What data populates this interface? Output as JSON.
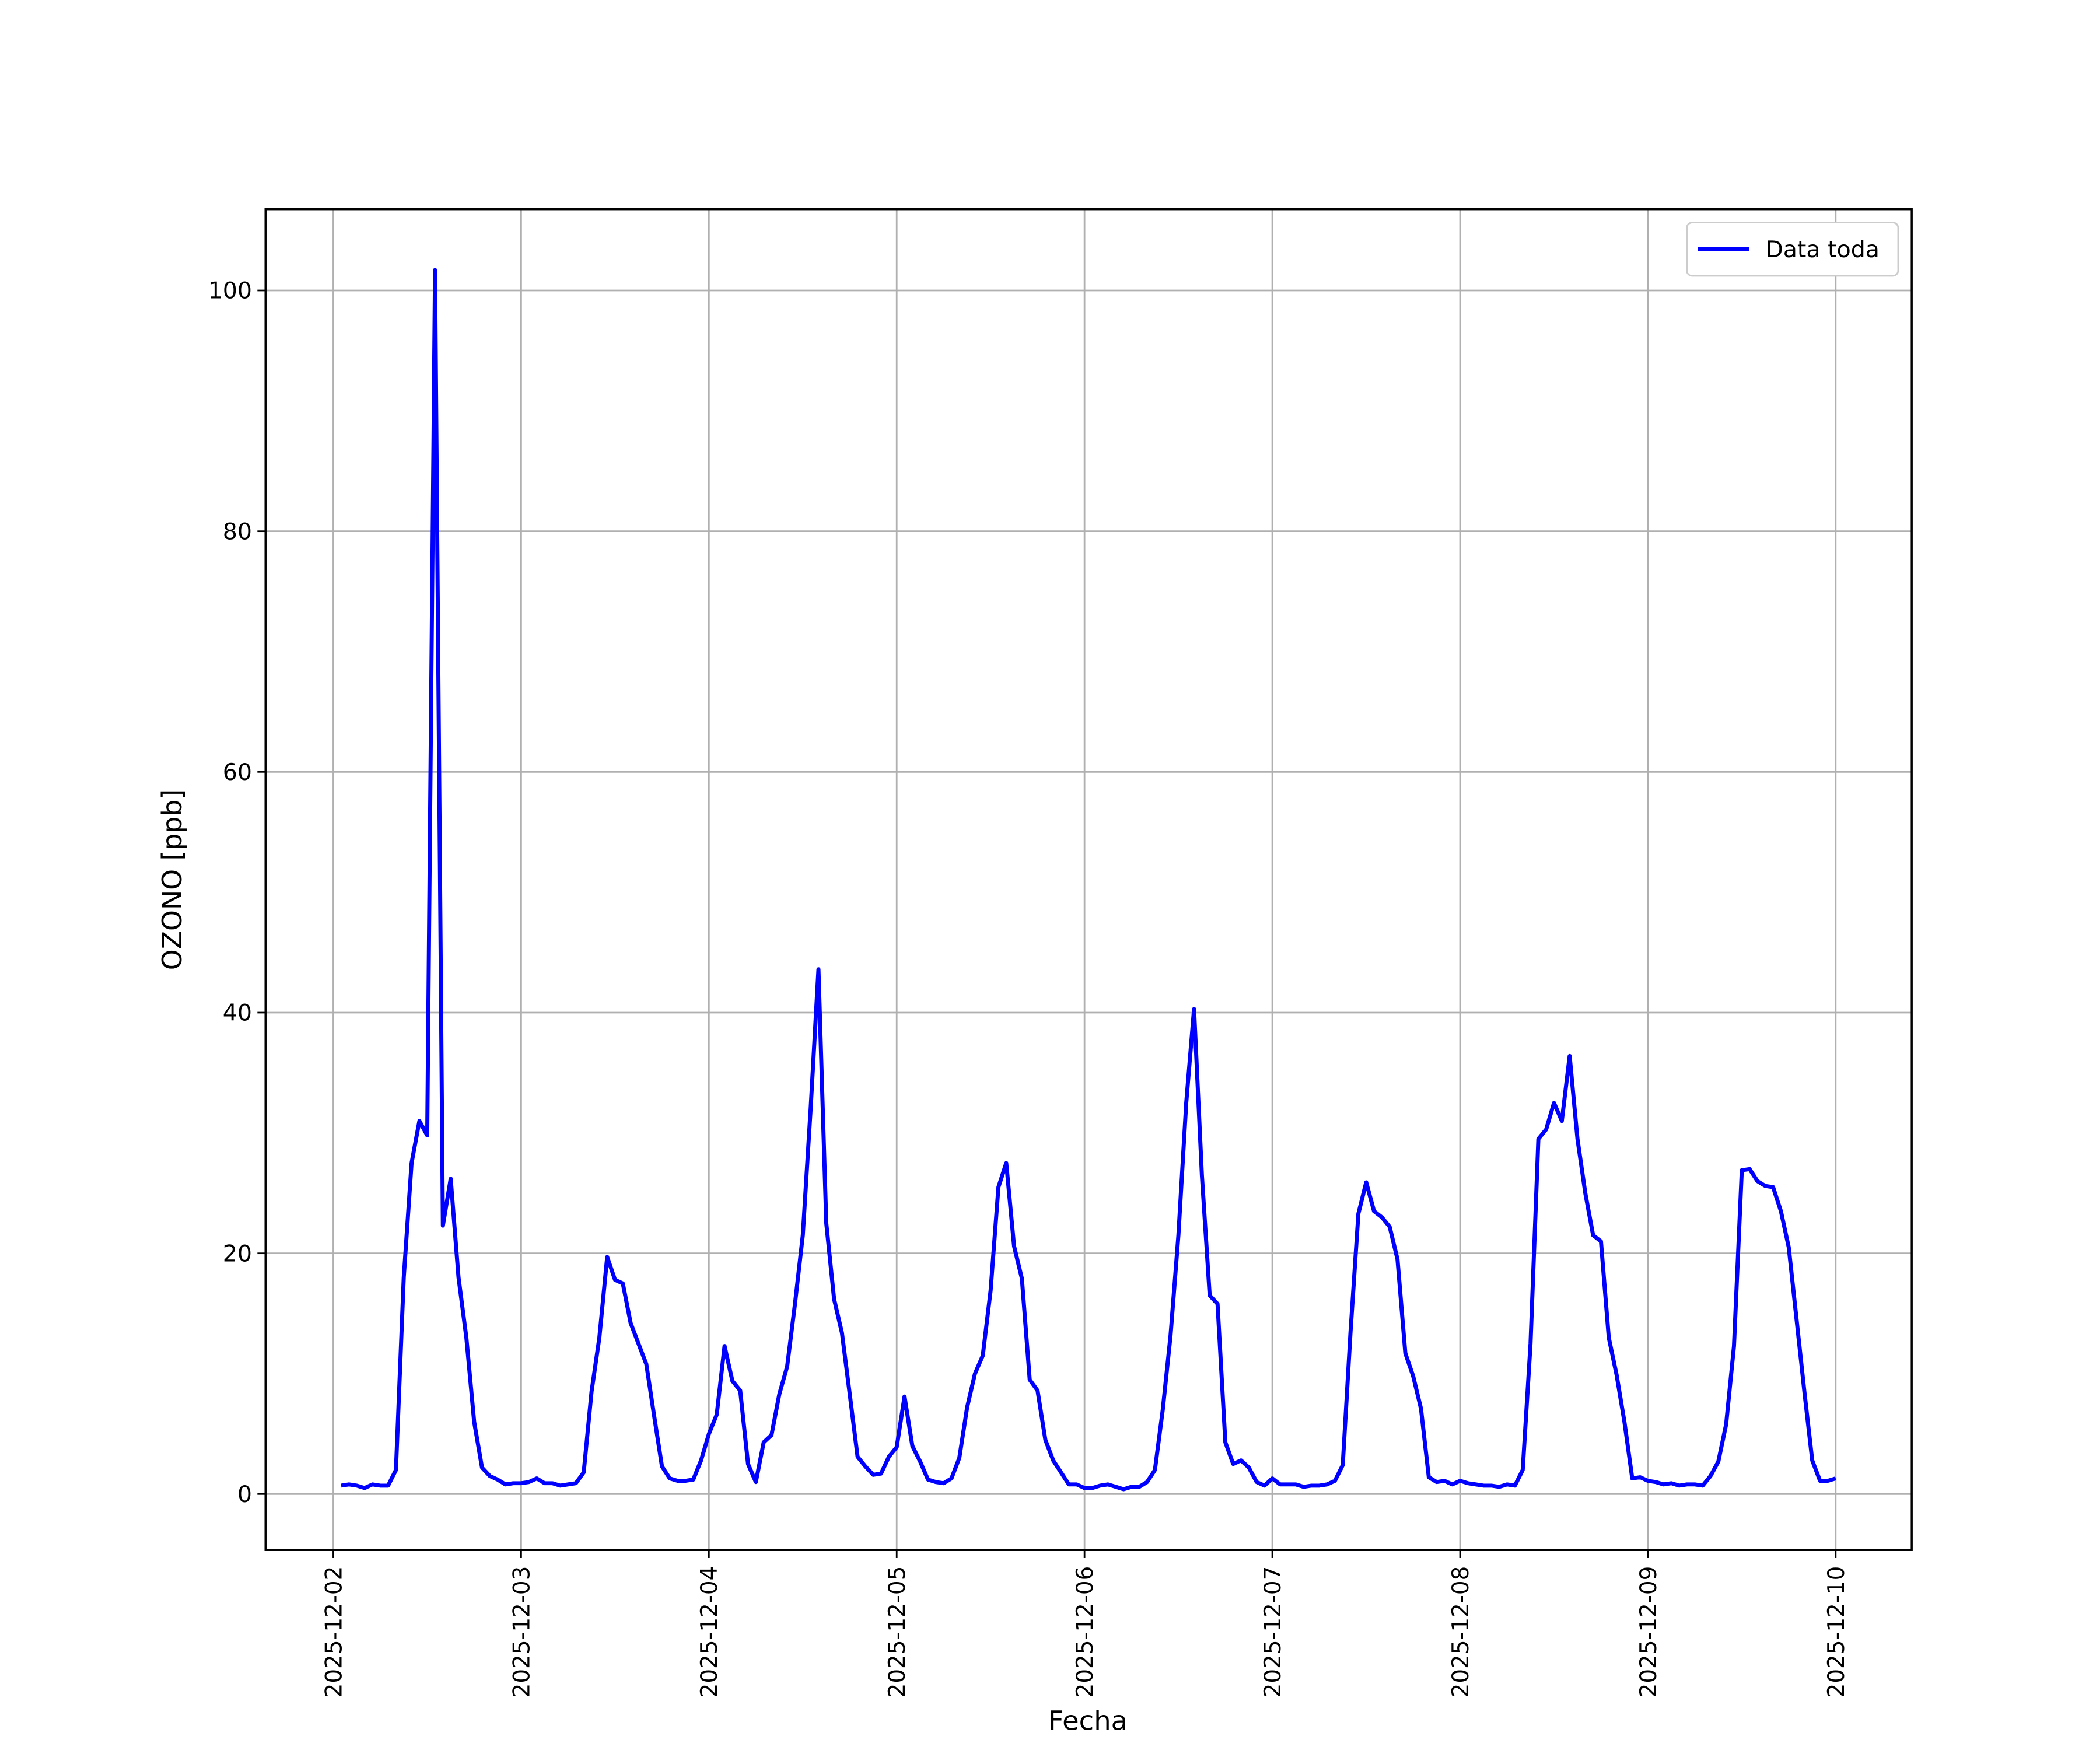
{
  "chart_data": {
    "type": "line",
    "xlabel": "Fecha",
    "ylabel": "OZONO [ppb]",
    "x": [
      "2025-12-02 01:00",
      "2025-12-02 02:00",
      "2025-12-02 03:00",
      "2025-12-02 04:00",
      "2025-12-02 05:00",
      "2025-12-02 06:00",
      "2025-12-02 07:00",
      "2025-12-02 08:00",
      "2025-12-02 09:00",
      "2025-12-02 10:00",
      "2025-12-02 11:00",
      "2025-12-02 12:00",
      "2025-12-02 13:00",
      "2025-12-02 14:00",
      "2025-12-02 15:00",
      "2025-12-02 16:00",
      "2025-12-02 17:00",
      "2025-12-02 18:00",
      "2025-12-02 19:00",
      "2025-12-02 20:00",
      "2025-12-02 21:00",
      "2025-12-02 22:00",
      "2025-12-02 23:00",
      "2025-12-03 00:00",
      "2025-12-03 01:00",
      "2025-12-03 02:00",
      "2025-12-03 03:00",
      "2025-12-03 04:00",
      "2025-12-03 05:00",
      "2025-12-03 06:00",
      "2025-12-03 07:00",
      "2025-12-03 08:00",
      "2025-12-03 09:00",
      "2025-12-03 10:00",
      "2025-12-03 11:00",
      "2025-12-03 12:00",
      "2025-12-03 13:00",
      "2025-12-03 14:00",
      "2025-12-03 15:00",
      "2025-12-03 16:00",
      "2025-12-03 17:00",
      "2025-12-03 18:00",
      "2025-12-03 19:00",
      "2025-12-03 20:00",
      "2025-12-03 21:00",
      "2025-12-03 22:00",
      "2025-12-03 23:00",
      "2025-12-04 00:00",
      "2025-12-04 01:00",
      "2025-12-04 02:00",
      "2025-12-04 03:00",
      "2025-12-04 04:00",
      "2025-12-04 05:00",
      "2025-12-04 06:00",
      "2025-12-04 07:00",
      "2025-12-04 08:00",
      "2025-12-04 09:00",
      "2025-12-04 10:00",
      "2025-12-04 11:00",
      "2025-12-04 12:00",
      "2025-12-04 13:00",
      "2025-12-04 14:00",
      "2025-12-04 15:00",
      "2025-12-04 16:00",
      "2025-12-04 17:00",
      "2025-12-04 18:00",
      "2025-12-04 19:00",
      "2025-12-04 20:00",
      "2025-12-04 21:00",
      "2025-12-04 22:00",
      "2025-12-04 23:00",
      "2025-12-05 00:00",
      "2025-12-05 01:00",
      "2025-12-05 02:00",
      "2025-12-05 03:00",
      "2025-12-05 04:00",
      "2025-12-05 05:00",
      "2025-12-05 06:00",
      "2025-12-05 07:00",
      "2025-12-05 08:00",
      "2025-12-05 09:00",
      "2025-12-05 10:00",
      "2025-12-05 11:00",
      "2025-12-05 12:00",
      "2025-12-05 13:00",
      "2025-12-05 14:00",
      "2025-12-05 15:00",
      "2025-12-05 16:00",
      "2025-12-05 17:00",
      "2025-12-05 18:00",
      "2025-12-05 19:00",
      "2025-12-05 20:00",
      "2025-12-05 21:00",
      "2025-12-05 22:00",
      "2025-12-05 23:00",
      "2025-12-06 00:00",
      "2025-12-06 01:00",
      "2025-12-06 02:00",
      "2025-12-06 03:00",
      "2025-12-06 04:00",
      "2025-12-06 05:00",
      "2025-12-06 06:00",
      "2025-12-06 07:00",
      "2025-12-06 08:00",
      "2025-12-06 09:00",
      "2025-12-06 10:00",
      "2025-12-06 11:00",
      "2025-12-06 12:00",
      "2025-12-06 13:00",
      "2025-12-06 14:00",
      "2025-12-06 15:00",
      "2025-12-06 16:00",
      "2025-12-06 17:00",
      "2025-12-06 18:00",
      "2025-12-06 19:00",
      "2025-12-06 20:00",
      "2025-12-06 21:00",
      "2025-12-06 22:00",
      "2025-12-06 23:00",
      "2025-12-07 00:00",
      "2025-12-07 01:00",
      "2025-12-07 02:00",
      "2025-12-07 03:00",
      "2025-12-07 04:00",
      "2025-12-07 05:00",
      "2025-12-07 06:00",
      "2025-12-07 07:00",
      "2025-12-07 08:00",
      "2025-12-07 09:00",
      "2025-12-07 10:00",
      "2025-12-07 11:00",
      "2025-12-07 12:00",
      "2025-12-07 13:00",
      "2025-12-07 14:00",
      "2025-12-07 15:00",
      "2025-12-07 16:00",
      "2025-12-07 17:00",
      "2025-12-07 18:00",
      "2025-12-07 19:00",
      "2025-12-07 20:00",
      "2025-12-07 21:00",
      "2025-12-07 22:00",
      "2025-12-07 23:00",
      "2025-12-08 00:00",
      "2025-12-08 01:00",
      "2025-12-08 02:00",
      "2025-12-08 03:00",
      "2025-12-08 04:00",
      "2025-12-08 05:00",
      "2025-12-08 06:00",
      "2025-12-08 07:00",
      "2025-12-08 08:00",
      "2025-12-08 09:00",
      "2025-12-08 10:00",
      "2025-12-08 11:00",
      "2025-12-08 12:00",
      "2025-12-08 13:00",
      "2025-12-08 14:00",
      "2025-12-08 15:00",
      "2025-12-08 16:00",
      "2025-12-08 17:00",
      "2025-12-08 18:00",
      "2025-12-08 19:00",
      "2025-12-08 20:00",
      "2025-12-08 21:00",
      "2025-12-08 22:00",
      "2025-12-08 23:00",
      "2025-12-09 00:00",
      "2025-12-09 01:00",
      "2025-12-09 02:00",
      "2025-12-09 03:00",
      "2025-12-09 04:00",
      "2025-12-09 05:00",
      "2025-12-09 06:00",
      "2025-12-09 07:00",
      "2025-12-09 08:00",
      "2025-12-09 09:00",
      "2025-12-09 10:00",
      "2025-12-09 11:00",
      "2025-12-09 12:00",
      "2025-12-09 13:00",
      "2025-12-09 14:00",
      "2025-12-09 15:00",
      "2025-12-09 16:00",
      "2025-12-09 17:00",
      "2025-12-09 18:00",
      "2025-12-09 19:00",
      "2025-12-09 20:00",
      "2025-12-09 21:00",
      "2025-12-09 22:00",
      "2025-12-09 23:00",
      "2025-12-10 00:00"
    ],
    "series": [
      {
        "name": "Data toda",
        "color": "#0000ff",
        "values": [
          0.7,
          0.8,
          0.7,
          0.5,
          0.8,
          0.7,
          0.7,
          2,
          18,
          27.5,
          31,
          29.8,
          101.7,
          22.3,
          26.2,
          18,
          13,
          6,
          2.2,
          1.5,
          1.2,
          0.8,
          0.9,
          0.9,
          1.0,
          1.3,
          0.9,
          0.9,
          0.7,
          0.8,
          0.9,
          1.8,
          8.5,
          13,
          19.7,
          17.8,
          17.5,
          14.2,
          12.5,
          10.8,
          6.5,
          2.3,
          1.3,
          1.1,
          1.1,
          1.2,
          2.8,
          5,
          6.6,
          12.3,
          9.4,
          8.6,
          2.5,
          1,
          4.3,
          4.9,
          8.3,
          10.6,
          15.8,
          21.5,
          32,
          43.6,
          22.5,
          16.2,
          13.4,
          8.3,
          3.1,
          2.3,
          1.6,
          1.7,
          3.1,
          3.9,
          8.1,
          4,
          2.7,
          1.2,
          1,
          0.9,
          1.3,
          3,
          7.2,
          10,
          11.5,
          16.9,
          25.5,
          27.5,
          20.6,
          17.9,
          9.5,
          8.6,
          4.5,
          2.8,
          1.8,
          0.8,
          0.8,
          0.5,
          0.5,
          0.7,
          0.8,
          0.6,
          0.4,
          0.6,
          0.6,
          1,
          2,
          7,
          13.2,
          21.5,
          32.5,
          40.3,
          26.5,
          16.5,
          15.8,
          4.3,
          2.5,
          2.8,
          2.2,
          1,
          0.7,
          1.3,
          0.8,
          0.8,
          0.8,
          0.6,
          0.7,
          0.7,
          0.8,
          1.1,
          2.4,
          13.5,
          23.3,
          25.9,
          23.5,
          23,
          22.2,
          19.5,
          11.7,
          9.8,
          7.1,
          1.4,
          1,
          1.1,
          0.8,
          1.1,
          0.9,
          0.8,
          0.7,
          0.7,
          0.6,
          0.8,
          0.7,
          2,
          12.5,
          29.5,
          30.3,
          32.5,
          31,
          36.4,
          29.5,
          25,
          21.5,
          21,
          13,
          9.9,
          6,
          1.3,
          1.4,
          1.1,
          1,
          0.8,
          0.9,
          0.7,
          0.8,
          0.8,
          0.7,
          1.5,
          2.7,
          5.8,
          12.3,
          26.9,
          27,
          26,
          25.6,
          25.5,
          23.5,
          20.5,
          14.5,
          8.5,
          2.8,
          1.1,
          1.1,
          1.3
        ]
      }
    ],
    "xlim": [
      "2025-12-01 15:20",
      "2025-12-10 09:43"
    ],
    "xticks": [
      "2025-12-02",
      "2025-12-03",
      "2025-12-04",
      "2025-12-05",
      "2025-12-06",
      "2025-12-07",
      "2025-12-08",
      "2025-12-09",
      "2025-12-10"
    ],
    "ylim": [
      -4.65,
      106.75
    ],
    "yticks": [
      0,
      20,
      40,
      60,
      80,
      100
    ],
    "grid": true,
    "legend": "upper right"
  }
}
